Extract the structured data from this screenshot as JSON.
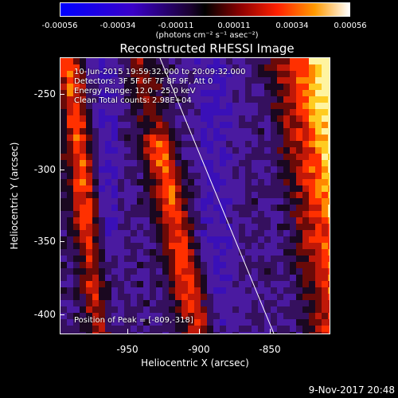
{
  "colorbar": {
    "ticks": [
      "-0.00056",
      "-0.00034",
      "-0.00011",
      "0.00011",
      "0.00034",
      "0.00056"
    ],
    "units": "(photons cm⁻² s⁻¹ asec⁻²)"
  },
  "title": "Reconstructed RHESSI Image",
  "annotations": {
    "time": "10-Jun-2015 19:59:32.000 to 20:09:32.000",
    "detectors": "Detectors: 3F 5F 6F 7F 8F 9F, Att 0",
    "energy": "Energy Range: 12.0 - 25.0 keV",
    "clean": "Clean    Total counts: 2.98E+04",
    "peak": "Position of Peak = [-809,-318]"
  },
  "chart_data": {
    "type": "heatmap",
    "title": "Reconstructed RHESSI Image",
    "xlabel": "Heliocentric X (arcsec)",
    "ylabel": "Heliocentric Y (arcsec)",
    "xticks": [
      "-950",
      "-900",
      "-850"
    ],
    "yticks": [
      "-250",
      "-300",
      "-350",
      "-400"
    ],
    "xlim": [
      -998,
      -828
    ],
    "ylim": [
      -416,
      -242
    ],
    "colorscale_range": [
      -0.00056,
      0.00056
    ],
    "peak_position": [
      -809,
      -318
    ],
    "limb_line": [
      [
        -910,
        -242
      ],
      [
        -850,
        -416
      ]
    ]
  },
  "footer": {
    "date": "9-Nov-2017 20:48"
  },
  "colors": {
    "negative": "#0000ff",
    "zero": "#000000",
    "positive_mid": "#ff0000",
    "positive_max": "#ffffff"
  }
}
